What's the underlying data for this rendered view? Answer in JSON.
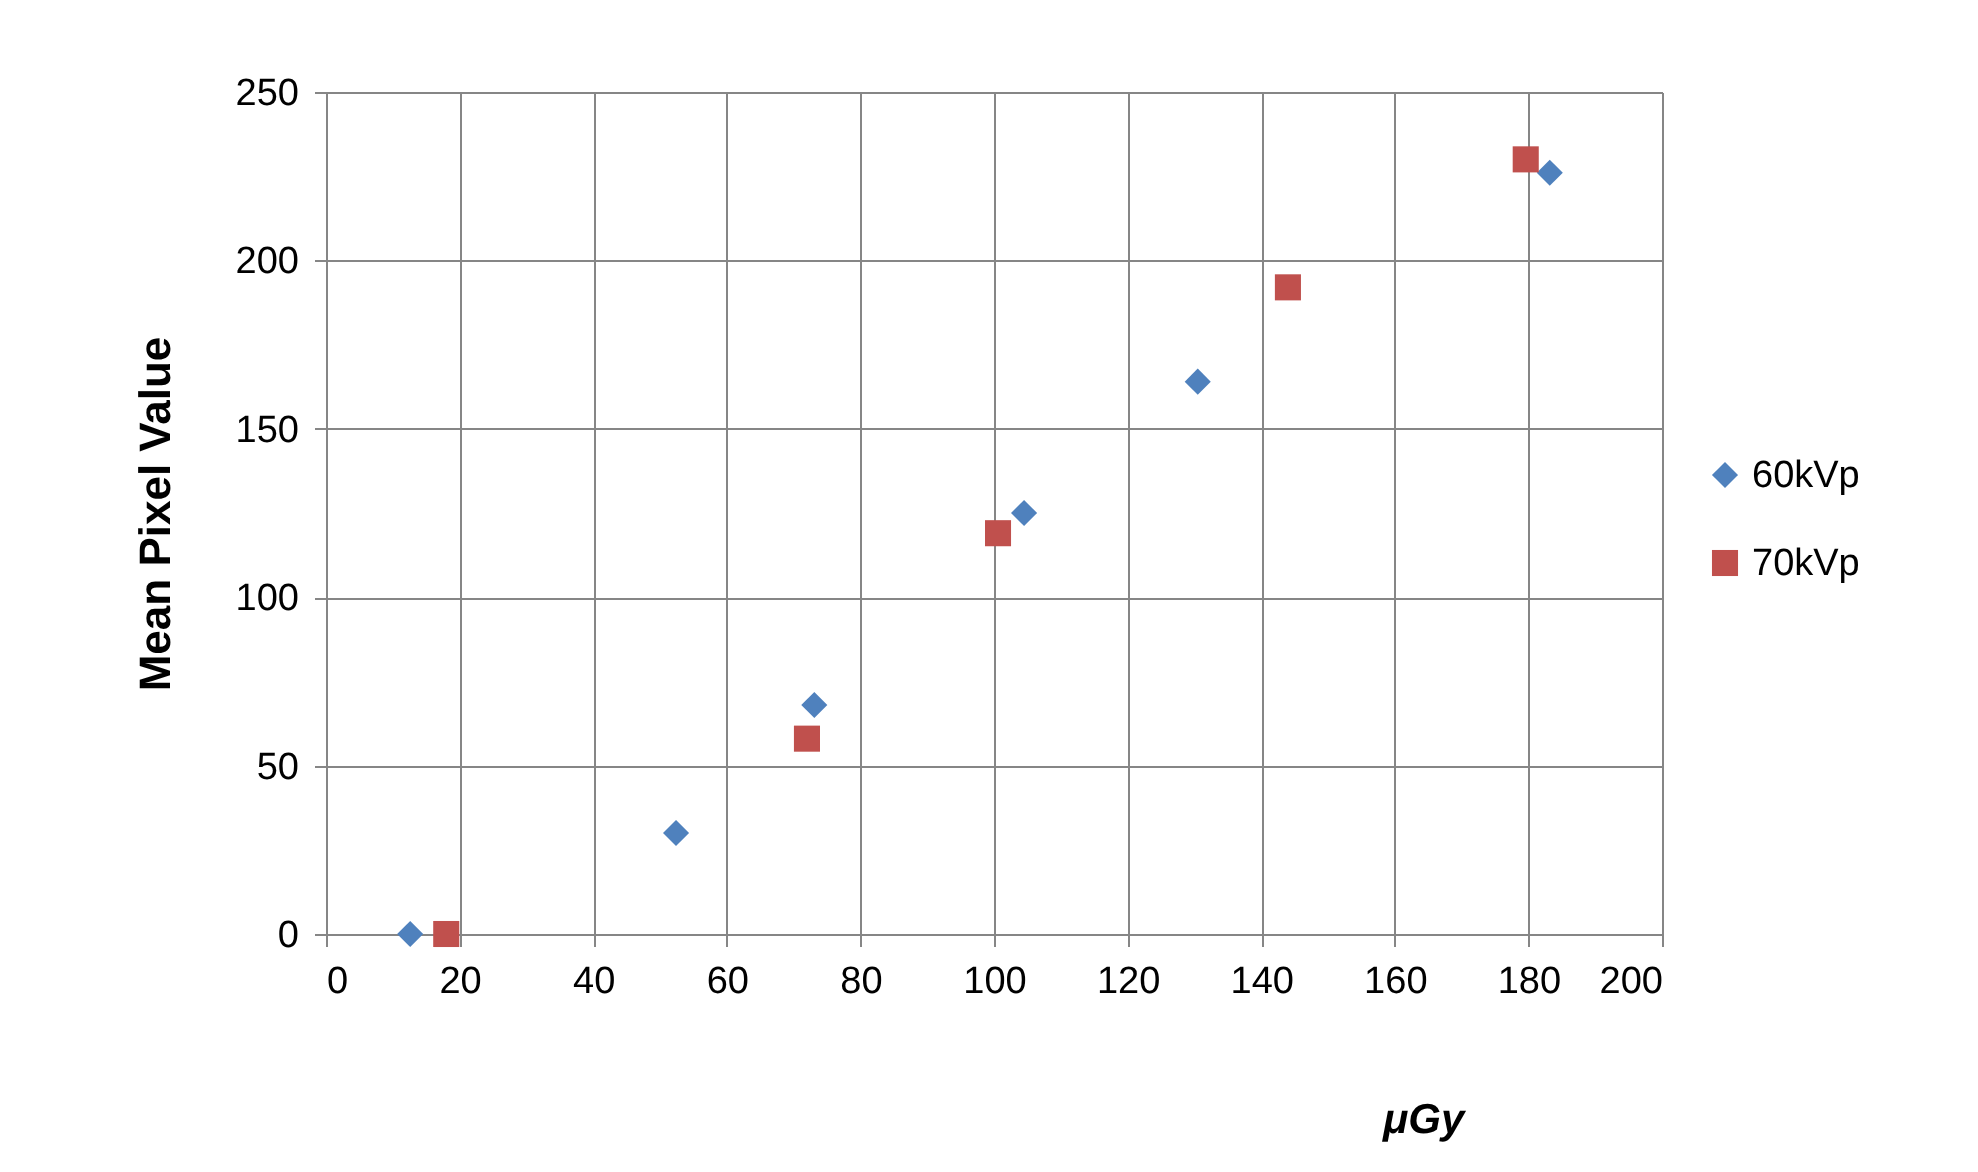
{
  "chart_data": {
    "type": "scatter",
    "xlabel": "μGy",
    "ylabel": "Mean Pixel Value",
    "xlim": [
      0,
      200
    ],
    "xticks": [
      0,
      20,
      40,
      60,
      80,
      100,
      120,
      140,
      160,
      180,
      200
    ],
    "ylim": [
      0,
      250
    ],
    "yticks": [
      0,
      50,
      100,
      150,
      200,
      250
    ],
    "grid": true,
    "legend": "right",
    "marker": "diamond",
    "series": [
      {
        "name": "60kVp",
        "color": "#4f81bd",
        "x": [
          12.6,
          52.4,
          73.1,
          104.5,
          130.5,
          183.2
        ],
        "values": [
          0,
          30,
          68,
          125,
          164,
          226
        ]
      },
      {
        "name": "70kVp",
        "color": "#c0504d",
        "marker": "square",
        "x": [
          18,
          72,
          100.6,
          144,
          179.6
        ],
        "values": [
          0,
          58,
          119,
          192,
          230
        ]
      }
    ]
  }
}
